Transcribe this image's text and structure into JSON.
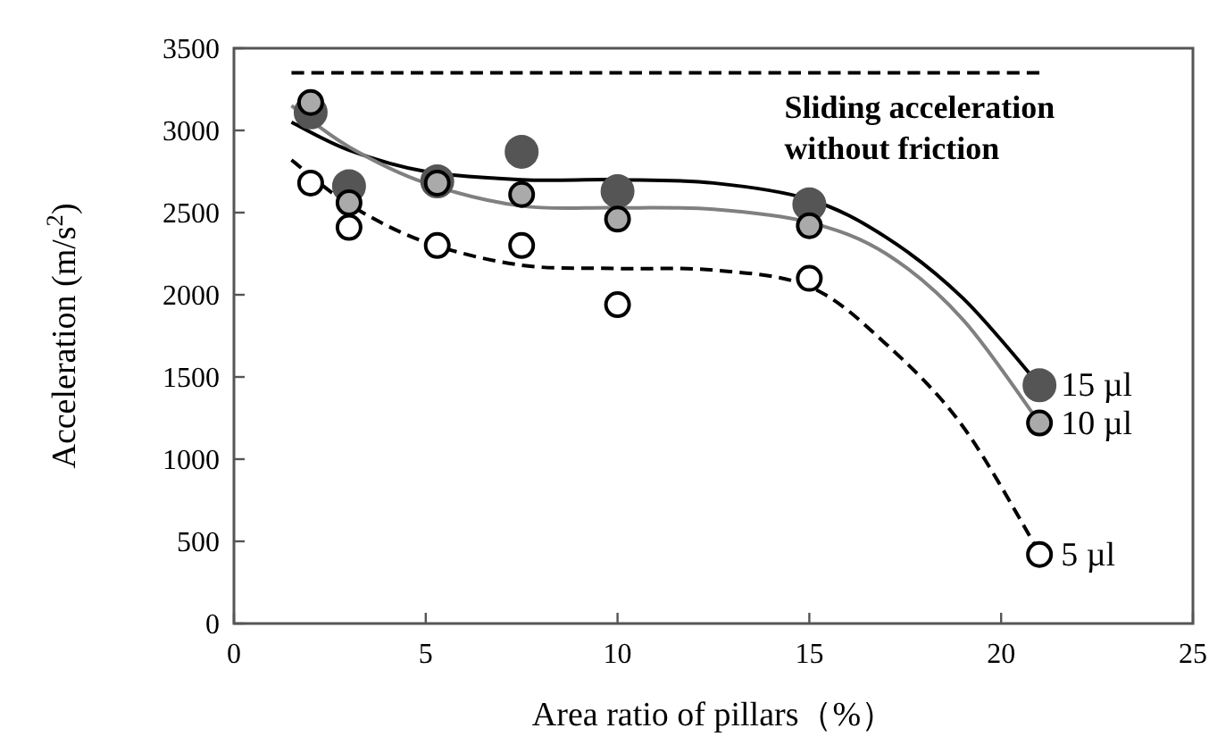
{
  "chart_data": {
    "type": "scatter",
    "xlabel": "Area ratio of pillars（%）",
    "ylabel": "Acceleration (m/s$^{2}$)",
    "xlim": [
      0,
      25
    ],
    "xticks": [
      0,
      5,
      10,
      15,
      20,
      25
    ],
    "ylim": [
      0,
      3500
    ],
    "yticks": [
      0,
      500,
      1000,
      1500,
      2000,
      2500,
      3000,
      3500
    ],
    "grid": false,
    "legend": false,
    "annotations": [
      {
        "text": "Sliding acceleration\nwithout friction",
        "x": 15,
        "y": 3350
      }
    ],
    "series": [
      {
        "type": "line",
        "color": "#000000",
        "line_style": "dashed",
        "x": [
          1.5,
          21
        ],
        "values": [
          3350,
          3350
        ]
      },
      {
        "type": "line",
        "color": "#000000",
        "line_style": "solid",
        "x": [
          1.5,
          3,
          5,
          7.5,
          10,
          12.5,
          15,
          17,
          19,
          21
        ],
        "values": [
          3050,
          2880,
          2750,
          2700,
          2700,
          2680,
          2580,
          2350,
          1980,
          1450
        ]
      },
      {
        "type": "line",
        "color": "#808080",
        "line_style": "solid",
        "x": [
          1.5,
          3,
          5,
          7.5,
          10,
          12.5,
          15,
          17,
          19,
          21
        ],
        "values": [
          3150,
          2900,
          2680,
          2540,
          2530,
          2520,
          2440,
          2250,
          1850,
          1220
        ]
      },
      {
        "type": "line",
        "color": "#000000",
        "line_style": "dashed",
        "x": [
          1.5,
          3,
          5,
          7.5,
          10,
          12.5,
          15,
          17,
          19,
          21
        ],
        "values": [
          2820,
          2550,
          2320,
          2180,
          2160,
          2150,
          2050,
          1700,
          1200,
          430
        ]
      },
      {
        "name": "15 µl",
        "color": "#555555",
        "marker": "circle",
        "x": [
          2,
          3,
          5.3,
          7.5,
          10,
          15,
          21
        ],
        "values": [
          3110,
          2660,
          2690,
          2870,
          2630,
          2550,
          1450
        ]
      },
      {
        "name": "10 µl",
        "color": "#aaaaaa",
        "marker": "circle",
        "x": [
          2,
          3,
          5.3,
          7.5,
          10,
          15,
          21
        ],
        "values": [
          3170,
          2560,
          2680,
          2610,
          2460,
          2420,
          1220
        ]
      },
      {
        "name": "5 µl",
        "color": "#ffffff",
        "marker": "circle",
        "x": [
          2,
          3,
          5.3,
          7.5,
          10,
          15,
          21
        ],
        "values": [
          2680,
          2410,
          2300,
          2300,
          1940,
          2100,
          420
        ]
      }
    ]
  }
}
